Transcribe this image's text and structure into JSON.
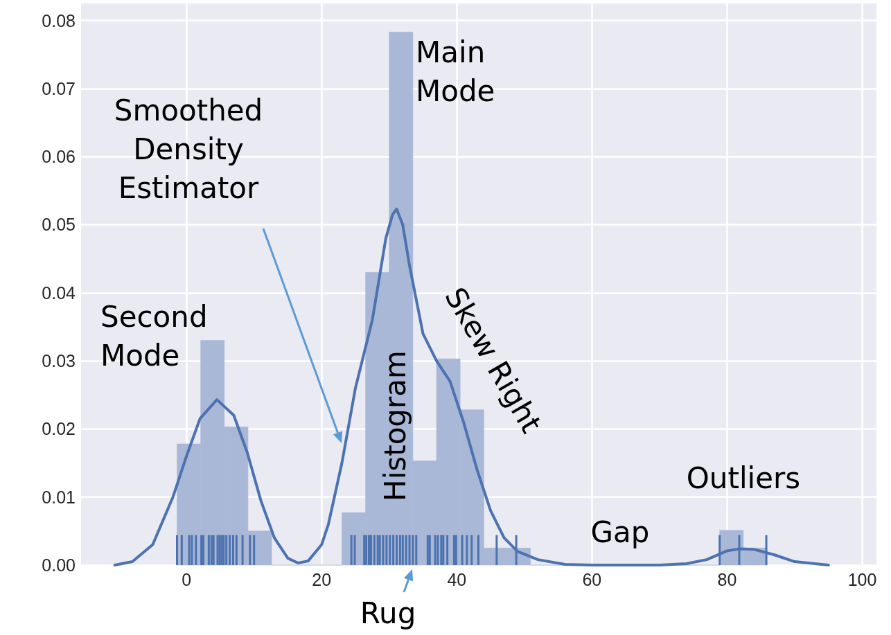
{
  "chart_data": {
    "type": "histogram",
    "xlim": [
      -15.6,
      102.1
    ],
    "ylim": [
      0,
      0.0825
    ],
    "xticks": [
      0,
      20,
      40,
      60,
      80,
      100
    ],
    "yticks": [
      {
        "value": 0,
        "label": "0.00"
      },
      {
        "value": 0.01,
        "label": "0.01"
      },
      {
        "value": 0.02,
        "label": "0.02"
      },
      {
        "value": 0.03,
        "label": "0.03"
      },
      {
        "value": 0.04,
        "label": "0.04"
      },
      {
        "value": 0.05,
        "label": "0.05"
      },
      {
        "value": 0.06,
        "label": "0.06"
      },
      {
        "value": 0.07,
        "label": "0.07"
      },
      {
        "value": 0.08,
        "label": "0.08"
      }
    ],
    "grid": true,
    "bins": [
      -1.4,
      2.1,
      5.6,
      9.1,
      12.6,
      16.0,
      19.5,
      23.0,
      26.5,
      30.0,
      33.5,
      37.0,
      40.5,
      44.0,
      47.4,
      50.9,
      54.4,
      57.9,
      61.4,
      64.9,
      68.4,
      71.9,
      75.4,
      78.9,
      82.4,
      85.9
    ],
    "values": [
      0.0178,
      0.033,
      0.0203,
      0.005,
      0,
      0,
      0,
      0.0077,
      0.043,
      0.0783,
      0.0153,
      0.0303,
      0.0228,
      0.0025,
      0.0025,
      0,
      0,
      0,
      0,
      0,
      0,
      0,
      0,
      0.0051,
      0.0025
    ],
    "color": "#a9b8d6",
    "series": [
      {
        "type": "line",
        "color": "#4c72b0",
        "marker": "none",
        "line_style": "solid",
        "x": [
          -10.6,
          -8,
          -5,
          -2,
          0,
          2,
          4.5,
          7,
          9,
          11,
          13,
          15,
          16.5,
          18,
          20,
          21,
          23,
          25,
          27.5,
          29.5,
          30.5,
          31.1,
          32,
          33,
          35,
          37,
          39,
          41,
          43,
          45,
          47,
          49,
          52,
          56,
          60,
          70,
          74,
          77,
          80,
          82,
          84,
          87,
          90,
          95
        ],
        "values": [
          0,
          0.0005,
          0.003,
          0.01,
          0.016,
          0.0215,
          0.0243,
          0.022,
          0.0165,
          0.0095,
          0.004,
          0.001,
          0.0003,
          0.0006,
          0.003,
          0.006,
          0.015,
          0.026,
          0.036,
          0.048,
          0.0515,
          0.0523,
          0.05,
          0.044,
          0.034,
          0.03,
          0.027,
          0.021,
          0.014,
          0.008,
          0.004,
          0.002,
          0.0008,
          0.0001,
          0,
          0,
          0.0002,
          0.0008,
          0.0021,
          0.0024,
          0.0023,
          0.0015,
          0.0005,
          0
        ]
      },
      {
        "type": "bar",
        "color": "#4c72b0",
        "x": [
          -1.4,
          -0.7,
          0.4,
          0.8,
          1.4,
          2.2,
          2.5,
          3.3,
          3.7,
          4.0,
          4.6,
          4.9,
          5.2,
          5.5,
          5.9,
          6.4,
          6.9,
          7.4,
          8.3,
          9.4,
          10.0,
          24.4,
          24.9,
          26.3,
          26.6,
          27.0,
          27.3,
          27.8,
          28.3,
          28.6,
          29.1,
          29.6,
          30.1,
          30.6,
          31.1,
          31.6,
          32.0,
          32.5,
          33.0,
          33.5,
          34.0,
          35.7,
          36.0,
          36.8,
          37.2,
          37.7,
          38.0,
          38.6,
          39.6,
          39.9,
          40.8,
          41.5,
          42.2,
          43.2,
          45.9,
          48.8,
          78.9,
          81.8,
          85.8
        ],
        "values": [
          0.0044,
          0.0044,
          0.0044,
          0.0044,
          0.0044,
          0.0044,
          0.0044,
          0.0044,
          0.0044,
          0.0044,
          0.0044,
          0.0044,
          0.0044,
          0.0044,
          0.0044,
          0.0044,
          0.0044,
          0.0044,
          0.0044,
          0.0044,
          0.0044,
          0.0044,
          0.0044,
          0.0044,
          0.0044,
          0.0044,
          0.0044,
          0.0044,
          0.0044,
          0.0044,
          0.0044,
          0.0044,
          0.0044,
          0.0044,
          0.0044,
          0.0044,
          0.0044,
          0.0044,
          0.0044,
          0.0044,
          0.0044,
          0.0044,
          0.0044,
          0.0044,
          0.0044,
          0.0044,
          0.0044,
          0.0044,
          0.0044,
          0.0044,
          0.0044,
          0.0044,
          0.0044,
          0.0044,
          0.0044,
          0.0044,
          0.0044,
          0.0044,
          0.0044
        ]
      }
    ],
    "annotations": [
      "Smoothed\nDensity\nEstimator",
      "Main\nMode",
      "Second\nMode",
      "Histogram",
      "Skew Right",
      "Gap",
      "Outliers",
      "Rug"
    ]
  }
}
